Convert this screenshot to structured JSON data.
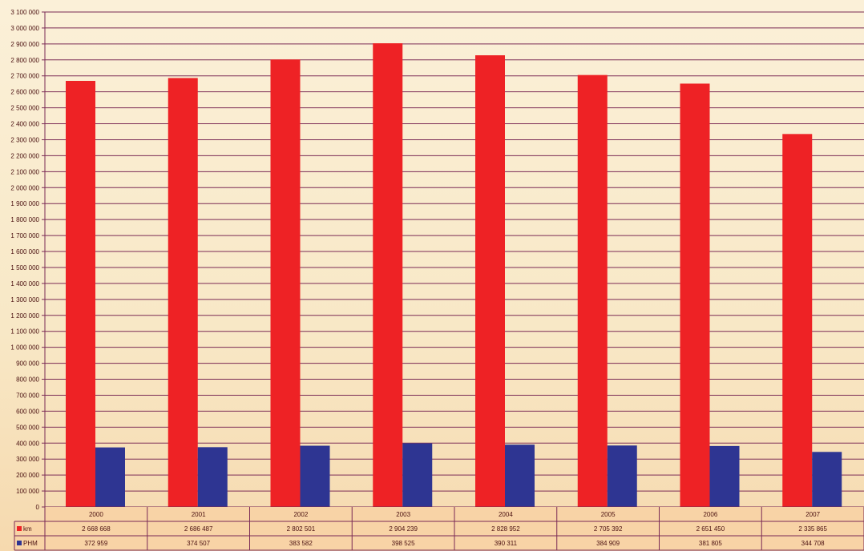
{
  "chart_data": {
    "type": "bar",
    "title": "",
    "xlabel": "",
    "ylabel": "",
    "categories": [
      "2000",
      "2001",
      "2002",
      "2003",
      "2004",
      "2005",
      "2006",
      "2007"
    ],
    "ylim": [
      0,
      3100000
    ],
    "y_tick_step": 100000,
    "y_tick_labels": [
      "0",
      "100 000",
      "200 000",
      "300 000",
      "400 000",
      "500 000",
      "600 000",
      "700 000",
      "800 000",
      "900 000",
      "1 000 000",
      "1 100 000",
      "1 200 000",
      "1 300 000",
      "1 400 000",
      "1 500 000",
      "1 600 000",
      "1 700 000",
      "1 800 000",
      "1 900 000",
      "2 000 000",
      "2 100 000",
      "2 200 000",
      "2 300 000",
      "2 400 000",
      "2 500 000",
      "2 600 000",
      "2 700 000",
      "2 800 000",
      "2 900 000",
      "3 000 000",
      "3 100 000"
    ],
    "grid": true,
    "legend": "in data table, left column",
    "series": [
      {
        "name": "km",
        "color": "#ee2225",
        "values": [
          2668668,
          2686487,
          2802501,
          2904239,
          2828952,
          2705392,
          2651450,
          2335865
        ],
        "value_labels": [
          "2 668 668",
          "2 686 487",
          "2 802 501",
          "2 904 239",
          "2 828 952",
          "2 705 392",
          "2 651 450",
          "2 335 865"
        ]
      },
      {
        "name": "PHM",
        "color": "#2e3592",
        "values": [
          372959,
          374507,
          383582,
          398525,
          390311,
          384909,
          381805,
          344708
        ],
        "value_labels": [
          "372 959",
          "374 507",
          "383 582",
          "398 525",
          "390 311",
          "384 909",
          "381 805",
          "344 708"
        ]
      }
    ]
  }
}
